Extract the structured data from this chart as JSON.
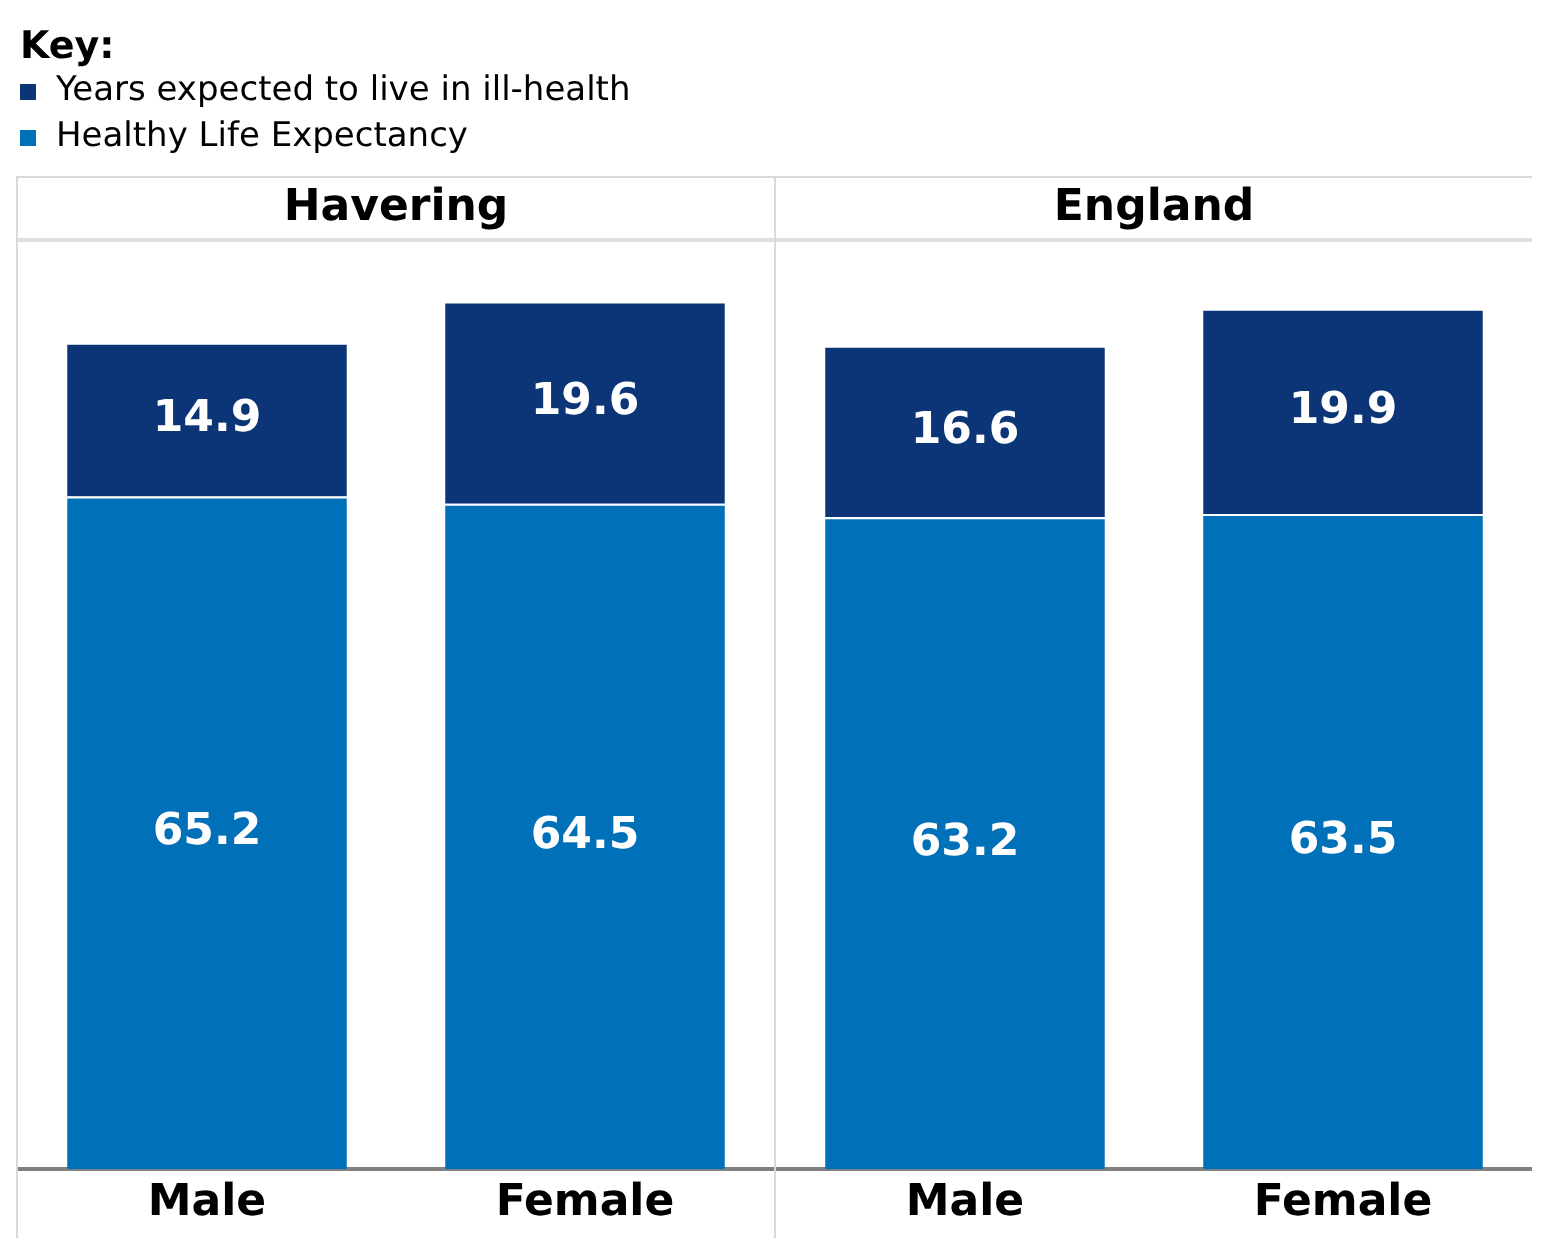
{
  "chart_data": [
    {
      "type": "bar",
      "title": "Havering",
      "legend_title": "Key:",
      "legend": "top left",
      "stacked": true,
      "data_labels": true,
      "categories": [
        "Male",
        "Female"
      ],
      "series": [
        {
          "name": "Healthy Life Expectancy",
          "color": "#0070b8",
          "values": [
            65.2,
            64.5
          ]
        },
        {
          "name": "Years expected to live in ill-health",
          "color": "#0b3577",
          "values": [
            14.9,
            19.6
          ]
        }
      ]
    },
    {
      "type": "bar",
      "title": "England",
      "stacked": true,
      "data_labels": true,
      "categories": [
        "Male",
        "Female"
      ],
      "series": [
        {
          "color": "#0070b8",
          "values": [
            63.2,
            63.5
          ]
        },
        {
          "color": "#0b3577",
          "values": [
            16.6,
            19.9
          ]
        }
      ]
    }
  ]
}
